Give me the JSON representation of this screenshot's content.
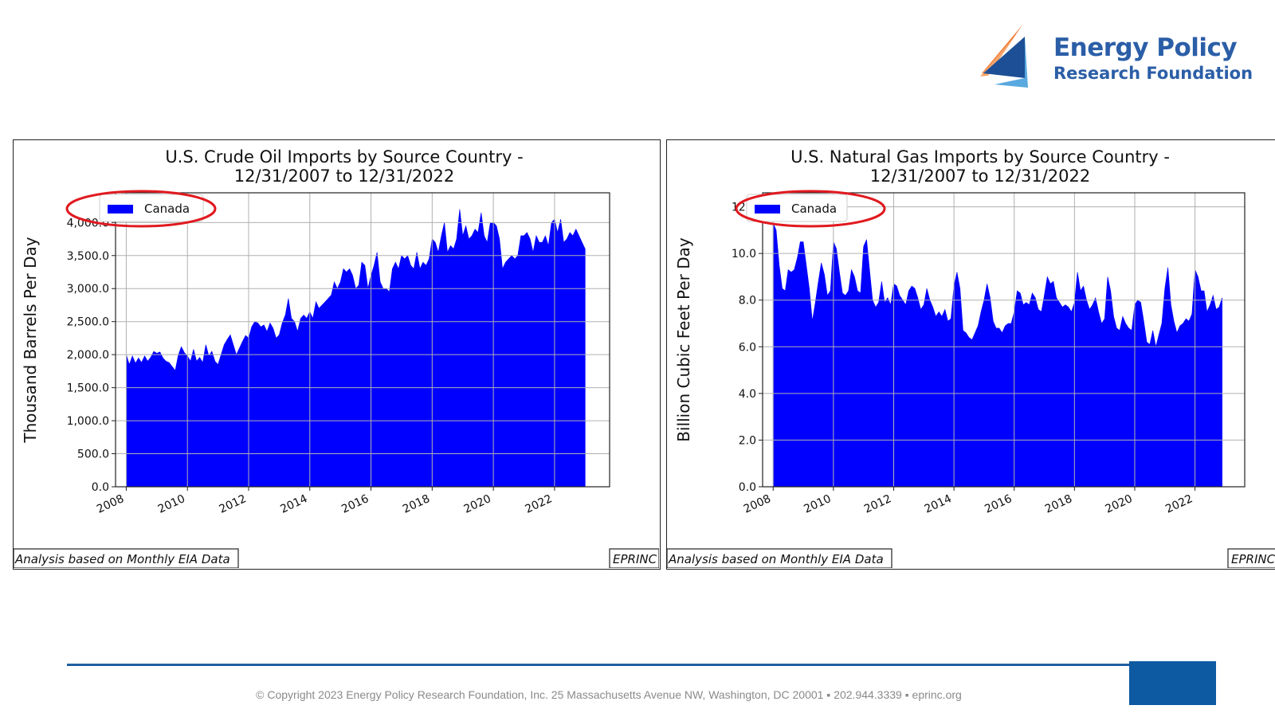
{
  "logo": {
    "line1": "Energy Policy",
    "line2": "Research Foundation",
    "colors": {
      "text": "#2b5ea7",
      "navy": "#1c4f96",
      "light": "#5aa9e0",
      "orange": "#f07a32"
    }
  },
  "footer": {
    "copyright": "© Copyright 2023 Energy Policy Research Foundation, Inc. 25 Massachusetts Avenue NW, Washington, DC 20001 ▪ 202.944.3339 ▪ eprinc.org"
  },
  "chart_data": [
    {
      "type": "area",
      "title": "U.S. Crude Oil Imports by Source Country -",
      "subtitle": "12/31/2007 to 12/31/2022",
      "ylabel": "Thousand Barrels Per Day",
      "legend": [
        "Canada"
      ],
      "legend_placement": "top-left",
      "footnote_left": "Analysis based on Monthly EIA Data",
      "footnote_right": "EPRINC",
      "grid": true,
      "color": "#0000ff",
      "highlight_color": "#e0191f",
      "xlim": [
        2007.65,
        2023.8
      ],
      "ylim": [
        0,
        4450
      ],
      "xticks": [
        2008,
        2010,
        2012,
        2014,
        2016,
        2018,
        2020,
        2022
      ],
      "yticks": [
        0,
        500,
        1000,
        1500,
        2000,
        2500,
        3000,
        3500,
        4000
      ],
      "ytick_labels": [
        "0.0",
        "500.0",
        "1,000.0",
        "1,500.0",
        "2,000.0",
        "2,500.0",
        "3,000.0",
        "3,500.0",
        "4,000.0"
      ],
      "series": [
        {
          "name": "Canada",
          "x": [
            2008.0,
            2008.1,
            2008.2,
            2008.3,
            2008.4,
            2008.5,
            2008.6,
            2008.7,
            2008.8,
            2008.9,
            2009.0,
            2009.1,
            2009.2,
            2009.3,
            2009.4,
            2009.5,
            2009.6,
            2009.7,
            2009.8,
            2009.9,
            2010.0,
            2010.1,
            2010.2,
            2010.3,
            2010.4,
            2010.5,
            2010.6,
            2010.7,
            2010.8,
            2010.9,
            2011.0,
            2011.1,
            2011.2,
            2011.3,
            2011.4,
            2011.5,
            2011.6,
            2011.7,
            2011.8,
            2011.9,
            2012.0,
            2012.1,
            2012.2,
            2012.3,
            2012.4,
            2012.5,
            2012.6,
            2012.7,
            2012.8,
            2012.9,
            2013.0,
            2013.1,
            2013.2,
            2013.3,
            2013.4,
            2013.5,
            2013.6,
            2013.7,
            2013.8,
            2013.9,
            2014.0,
            2014.1,
            2014.2,
            2014.3,
            2014.4,
            2014.5,
            2014.6,
            2014.7,
            2014.8,
            2014.9,
            2015.0,
            2015.1,
            2015.2,
            2015.3,
            2015.4,
            2015.5,
            2015.6,
            2015.7,
            2015.8,
            2015.9,
            2016.0,
            2016.1,
            2016.2,
            2016.3,
            2016.4,
            2016.5,
            2016.6,
            2016.7,
            2016.8,
            2016.9,
            2017.0,
            2017.1,
            2017.2,
            2017.3,
            2017.4,
            2017.5,
            2017.6,
            2017.7,
            2017.8,
            2017.9,
            2018.0,
            2018.1,
            2018.2,
            2018.3,
            2018.4,
            2018.5,
            2018.6,
            2018.7,
            2018.8,
            2018.9,
            2019.0,
            2019.1,
            2019.2,
            2019.3,
            2019.4,
            2019.5,
            2019.6,
            2019.7,
            2019.8,
            2019.9,
            2020.0,
            2020.1,
            2020.2,
            2020.3,
            2020.4,
            2020.5,
            2020.6,
            2020.7,
            2020.8,
            2020.9,
            2021.0,
            2021.1,
            2021.2,
            2021.3,
            2021.4,
            2021.5,
            2021.6,
            2021.7,
            2021.8,
            2021.9,
            2022.0,
            2022.1,
            2022.2,
            2022.3,
            2022.4,
            2022.5,
            2022.6,
            2022.7,
            2022.8,
            2022.9,
            2023.0
          ],
          "values": [
            2000,
            1850,
            1980,
            1870,
            1950,
            1880,
            1980,
            1900,
            1960,
            2050,
            2020,
            2040,
            1950,
            1900,
            1880,
            1820,
            1760,
            1990,
            2120,
            2030,
            1980,
            1900,
            2080,
            1900,
            1960,
            1880,
            2150,
            1980,
            2050,
            1900,
            1850,
            2000,
            2150,
            2230,
            2300,
            2150,
            2000,
            2100,
            2200,
            2290,
            2250,
            2420,
            2500,
            2480,
            2420,
            2450,
            2350,
            2480,
            2400,
            2250,
            2300,
            2480,
            2600,
            2850,
            2550,
            2500,
            2350,
            2550,
            2600,
            2550,
            2650,
            2550,
            2800,
            2700,
            2750,
            2800,
            2850,
            2900,
            3100,
            3000,
            3100,
            3300,
            3250,
            3300,
            3200,
            3000,
            3050,
            3400,
            3350,
            3000,
            3200,
            3350,
            3550,
            3100,
            3000,
            3000,
            2950,
            3300,
            3400,
            3300,
            3500,
            3450,
            3500,
            3350,
            3300,
            3550,
            3300,
            3400,
            3350,
            3450,
            3750,
            3700,
            3550,
            3800,
            4000,
            3550,
            3650,
            3600,
            3750,
            4200,
            3800,
            3950,
            3750,
            3800,
            3900,
            3850,
            4150,
            3800,
            3700,
            4000,
            4000,
            3950,
            3750,
            3300,
            3400,
            3450,
            3500,
            3450,
            3500,
            3800,
            3800,
            3850,
            3750,
            3550,
            3800,
            3700,
            3700,
            3800,
            3650,
            4000,
            4050,
            3850,
            4050,
            3700,
            3750,
            3850,
            3800,
            3900,
            3800,
            3700,
            3600
          ]
        }
      ]
    },
    {
      "type": "area",
      "title": "U.S. Natural Gas Imports by Source Country -",
      "subtitle": "12/31/2007 to 12/31/2022",
      "ylabel": "Billion Cubic Feet Per Day",
      "legend": [
        "Canada"
      ],
      "legend_placement": "top-left",
      "footnote_left": "Analysis based on Monthly EIA Data",
      "footnote_right": "EPRINC",
      "grid": true,
      "color": "#0000ff",
      "highlight_color": "#e0191f",
      "xlim": [
        2007.65,
        2023.65
      ],
      "ylim": [
        0,
        12.6
      ],
      "xticks": [
        2008,
        2010,
        2012,
        2014,
        2016,
        2018,
        2020,
        2022
      ],
      "yticks": [
        0,
        2,
        4,
        6,
        8,
        10,
        12
      ],
      "ytick_labels": [
        "0.0",
        "2.0",
        "4.0",
        "6.0",
        "8.0",
        "10.0",
        "12.0"
      ],
      "series": [
        {
          "name": "Canada",
          "x": [
            2008.0,
            2008.1,
            2008.2,
            2008.3,
            2008.4,
            2008.5,
            2008.6,
            2008.7,
            2008.8,
            2008.9,
            2009.0,
            2009.1,
            2009.2,
            2009.3,
            2009.4,
            2009.5,
            2009.6,
            2009.7,
            2009.8,
            2009.9,
            2010.0,
            2010.1,
            2010.2,
            2010.3,
            2010.4,
            2010.5,
            2010.6,
            2010.7,
            2010.8,
            2010.9,
            2011.0,
            2011.1,
            2011.2,
            2011.3,
            2011.4,
            2011.5,
            2011.6,
            2011.7,
            2011.8,
            2011.9,
            2012.0,
            2012.1,
            2012.2,
            2012.3,
            2012.4,
            2012.5,
            2012.6,
            2012.7,
            2012.8,
            2012.9,
            2013.0,
            2013.1,
            2013.2,
            2013.3,
            2013.4,
            2013.5,
            2013.6,
            2013.7,
            2013.8,
            2013.9,
            2014.0,
            2014.1,
            2014.2,
            2014.3,
            2014.4,
            2014.5,
            2014.6,
            2014.7,
            2014.8,
            2014.9,
            2015.0,
            2015.1,
            2015.2,
            2015.3,
            2015.4,
            2015.5,
            2015.6,
            2015.7,
            2015.8,
            2015.9,
            2016.0,
            2016.1,
            2016.2,
            2016.3,
            2016.4,
            2016.5,
            2016.6,
            2016.7,
            2016.8,
            2016.9,
            2017.0,
            2017.1,
            2017.2,
            2017.3,
            2017.4,
            2017.5,
            2017.6,
            2017.7,
            2017.8,
            2017.9,
            2018.0,
            2018.1,
            2018.2,
            2018.3,
            2018.4,
            2018.5,
            2018.6,
            2018.7,
            2018.8,
            2018.9,
            2019.0,
            2019.1,
            2019.2,
            2019.3,
            2019.4,
            2019.5,
            2019.6,
            2019.7,
            2019.8,
            2019.9,
            2020.0,
            2020.1,
            2020.2,
            2020.3,
            2020.4,
            2020.5,
            2020.6,
            2020.7,
            2020.8,
            2020.9,
            2021.0,
            2021.1,
            2021.2,
            2021.3,
            2021.4,
            2021.5,
            2021.6,
            2021.7,
            2021.8,
            2021.9,
            2022.0,
            2022.1,
            2022.2,
            2022.3,
            2022.4,
            2022.5,
            2022.6,
            2022.7,
            2022.8,
            2022.9
          ],
          "values": [
            11.3,
            11.0,
            9.5,
            8.5,
            8.4,
            9.3,
            9.2,
            9.3,
            9.8,
            10.5,
            10.5,
            9.5,
            8.5,
            7.1,
            7.9,
            8.8,
            9.6,
            9.1,
            8.2,
            8.4,
            10.5,
            10.2,
            9.2,
            8.3,
            8.2,
            8.4,
            9.3,
            9.0,
            8.4,
            8.3,
            10.3,
            10.6,
            9.3,
            8.0,
            7.7,
            7.9,
            8.8,
            7.9,
            8.1,
            7.8,
            8.7,
            8.6,
            8.2,
            8.0,
            7.8,
            8.4,
            8.6,
            8.5,
            8.1,
            7.6,
            7.8,
            8.5,
            8.0,
            7.7,
            7.3,
            7.5,
            7.3,
            7.6,
            7.1,
            7.2,
            8.6,
            9.2,
            8.5,
            6.7,
            6.6,
            6.4,
            6.3,
            6.6,
            6.9,
            7.5,
            8.0,
            8.7,
            8.1,
            7.1,
            6.8,
            6.8,
            6.6,
            6.9,
            7.0,
            7.0,
            7.5,
            8.4,
            8.3,
            7.8,
            7.9,
            7.8,
            8.3,
            8.1,
            7.6,
            7.5,
            8.2,
            9.0,
            8.7,
            8.8,
            8.1,
            7.9,
            7.7,
            7.8,
            7.7,
            7.5,
            7.9,
            9.2,
            8.4,
            8.6,
            8.0,
            7.6,
            7.8,
            8.1,
            7.5,
            7.0,
            7.2,
            9.0,
            8.4,
            7.3,
            6.8,
            6.7,
            7.3,
            7.0,
            6.8,
            6.7,
            7.8,
            8.0,
            7.9,
            7.1,
            6.2,
            6.1,
            6.7,
            6.0,
            6.5,
            7.0,
            8.5,
            9.4,
            7.8,
            7.1,
            6.6,
            6.9,
            7.0,
            7.2,
            7.1,
            7.4,
            9.3,
            9.0,
            8.4,
            8.4,
            7.5,
            7.8,
            8.2,
            7.6,
            7.7,
            8.1
          ]
        }
      ]
    }
  ]
}
